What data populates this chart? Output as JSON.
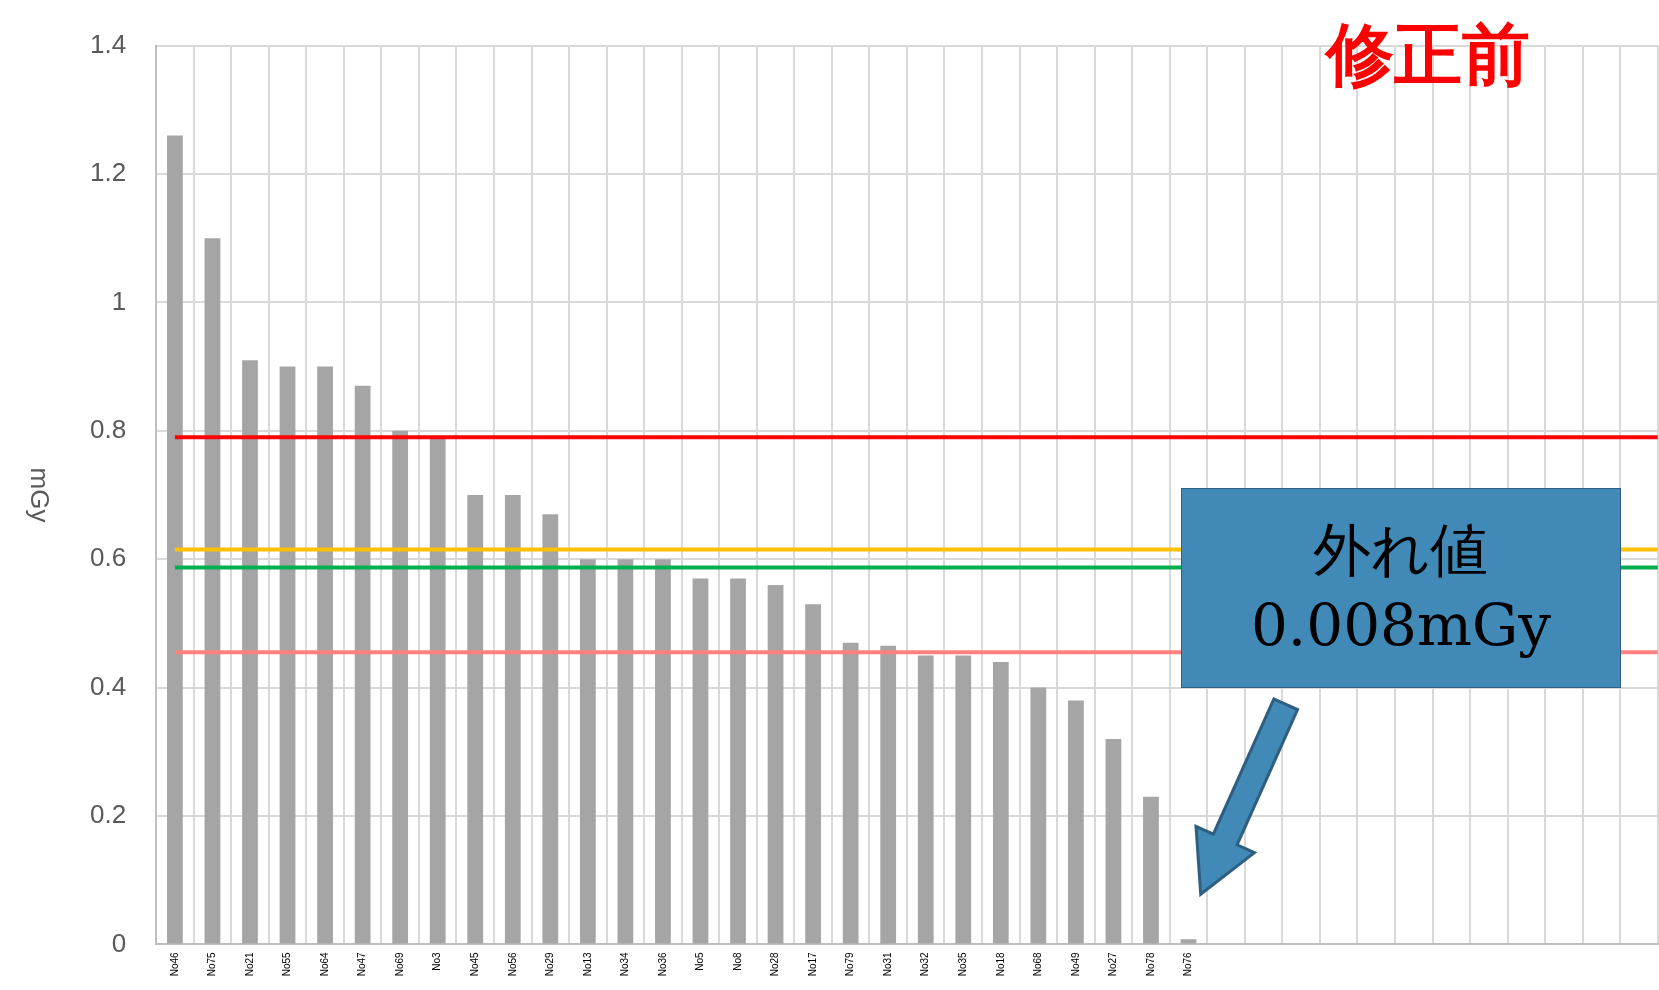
{
  "chart_data": {
    "type": "bar",
    "title": "修正前",
    "ylabel": "mGy",
    "categories": [
      "No46",
      "No75",
      "No21",
      "No55",
      "No64",
      "No47",
      "No69",
      "No3",
      "No45",
      "No56",
      "No29",
      "No13",
      "No34",
      "No36",
      "No5",
      "No8",
      "No28",
      "No17",
      "No79",
      "No31",
      "No32",
      "No35",
      "No18",
      "No68",
      "No49",
      "No27",
      "No78",
      "No76",
      null,
      null,
      null,
      null,
      null,
      null,
      null,
      null,
      null,
      null,
      null,
      null
    ],
    "values": [
      1.26,
      1.1,
      0.91,
      0.9,
      0.9,
      0.87,
      0.8,
      0.79,
      0.7,
      0.7,
      0.67,
      0.6,
      0.6,
      0.6,
      0.57,
      0.57,
      0.56,
      0.53,
      0.47,
      0.465,
      0.45,
      0.45,
      0.44,
      0.4,
      0.38,
      0.32,
      0.23,
      0.008,
      null,
      null,
      null,
      null,
      null,
      null,
      null,
      null,
      null,
      null,
      null,
      null
    ],
    "color": "#a5a5a5",
    "ylim": [
      0,
      1.4
    ],
    "yticks": [
      0,
      0.2,
      0.4,
      0.6,
      0.8,
      1,
      1.2,
      1.4
    ],
    "grid": true,
    "legend": false,
    "ref_lines": [
      {
        "axis": "y",
        "value": 0.79,
        "color": "#ff0000"
      },
      {
        "axis": "y",
        "value": 0.615,
        "color": "#ffc000"
      },
      {
        "axis": "y",
        "value": 0.587,
        "color": "#00b050"
      },
      {
        "axis": "y",
        "value": 0.455,
        "color": "#ff8080"
      }
    ],
    "annotations": [
      "外れ値\n0.008mGy"
    ]
  }
}
